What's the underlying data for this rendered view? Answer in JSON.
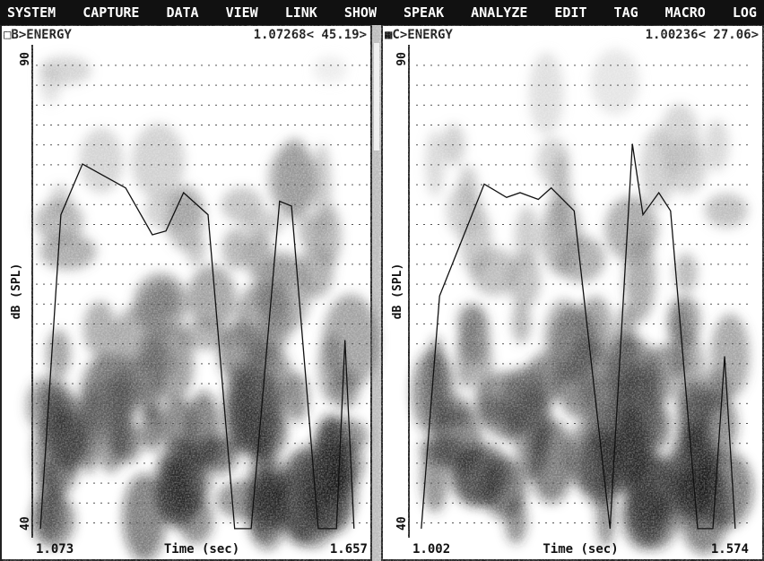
{
  "menu": [
    "SYSTEM",
    "CAPTURE",
    "DATA",
    "VIEW",
    "LINK",
    "SHOW",
    "SPEAK",
    "ANALYZE",
    "EDIT",
    "TAG",
    "MACRO",
    "LOG"
  ],
  "panels": [
    {
      "title": "□B>ENERGY",
      "readout": "1.07268< 45.19>",
      "y_label": "dB (SPL)",
      "ylim": [
        40,
        90
      ],
      "yticks": [
        40,
        90
      ],
      "x_label": "Time (sec)",
      "xlim": [
        1.073,
        1.657
      ],
      "xticks": [
        1.073,
        1.657
      ],
      "energy": {
        "x": [
          1.081,
          1.117,
          1.155,
          1.231,
          1.278,
          1.302,
          1.333,
          1.376,
          1.423,
          1.452,
          1.502,
          1.523,
          1.57,
          1.602,
          1.617,
          1.633
        ],
        "y": [
          40.2,
          73.0,
          78.3,
          75.8,
          70.9,
          71.3,
          75.3,
          73.0,
          40.2,
          40.2,
          74.4,
          73.9,
          40.2,
          40.2,
          59.9,
          40.2
        ]
      }
    },
    {
      "title": "■C>ENERGY",
      "readout": "1.00236< 27.06>",
      "y_label": "dB (SPL)",
      "ylim": [
        40,
        90
      ],
      "yticks": [
        40,
        90
      ],
      "x_label": "Time (sec)",
      "xlim": [
        1.002,
        1.574
      ],
      "xticks": [
        1.002,
        1.574
      ],
      "energy": {
        "x": [
          1.017,
          1.048,
          1.124,
          1.162,
          1.185,
          1.216,
          1.238,
          1.277,
          1.338,
          1.376,
          1.394,
          1.421,
          1.441,
          1.487,
          1.513,
          1.533,
          1.551
        ],
        "y": [
          40.2,
          64.5,
          76.2,
          74.8,
          75.3,
          74.6,
          75.8,
          73.4,
          40.2,
          80.4,
          73.0,
          75.3,
          73.4,
          40.2,
          40.2,
          58.2,
          40.2
        ]
      }
    }
  ]
}
